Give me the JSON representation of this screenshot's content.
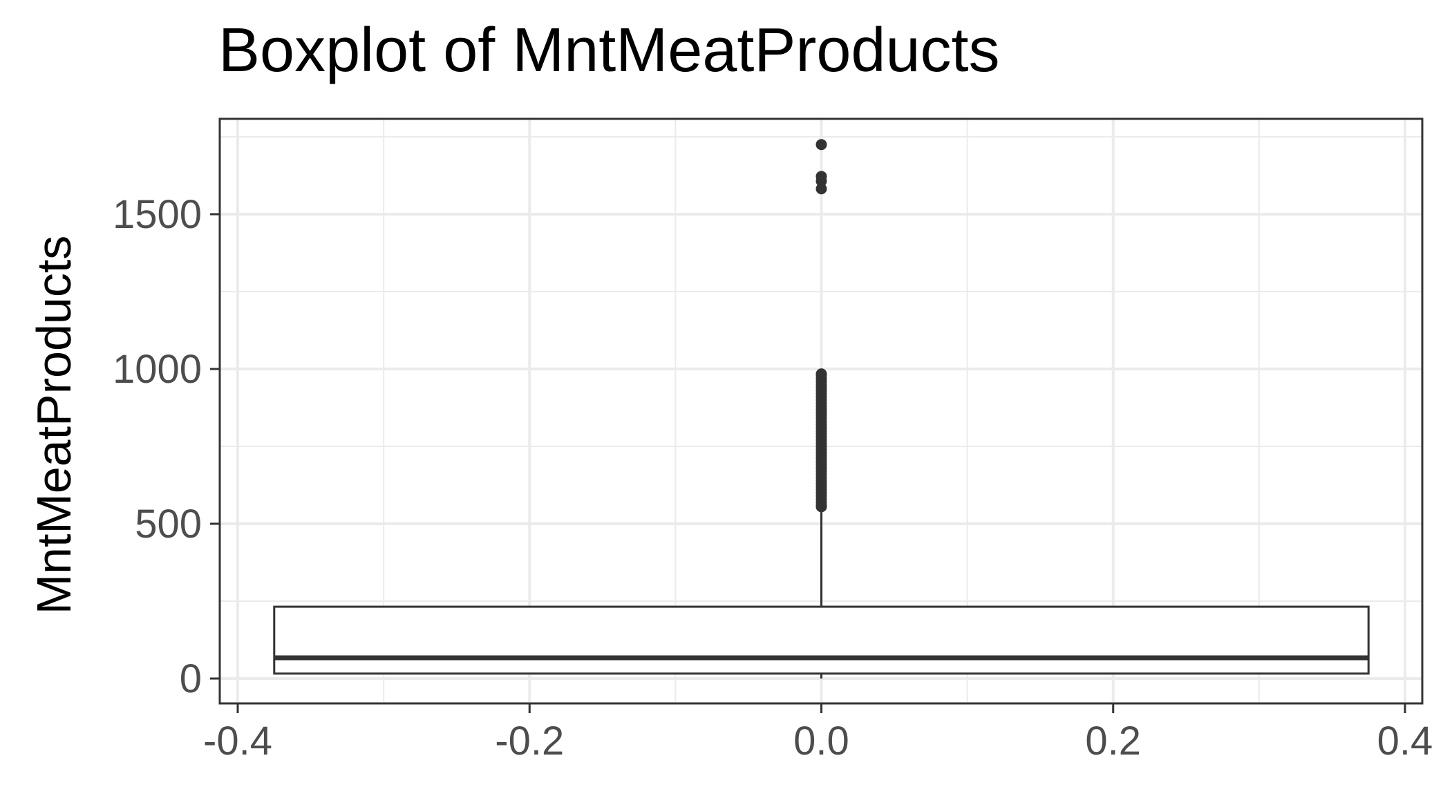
{
  "chart_data": {
    "type": "boxplot",
    "title": "Boxplot of MntMeatProducts",
    "xlabel": "",
    "ylabel": "MntMeatProducts",
    "xlim": [
      -0.4,
      0.4
    ],
    "ylim": [
      0,
      1725
    ],
    "x_ticks": [
      -0.4,
      -0.2,
      0.0,
      0.2,
      0.4
    ],
    "x_tick_labels": [
      "-0.4",
      "-0.2",
      "0.0",
      "0.2",
      "0.4"
    ],
    "y_ticks": [
      0,
      500,
      1000,
      1500
    ],
    "y_tick_labels": [
      "0",
      "500",
      "1000",
      "1500"
    ],
    "grid": true,
    "box": {
      "x": 0.0,
      "width": 0.75,
      "min": 0,
      "q1": 16,
      "median": 67,
      "q3": 232,
      "whisker_high": 550
    },
    "outliers": [
      555,
      560,
      570,
      580,
      590,
      600,
      610,
      620,
      630,
      640,
      650,
      660,
      670,
      680,
      690,
      700,
      710,
      720,
      730,
      740,
      750,
      760,
      770,
      780,
      790,
      800,
      810,
      820,
      830,
      840,
      850,
      860,
      870,
      880,
      890,
      900,
      910,
      920,
      930,
      940,
      950,
      960,
      970,
      981,
      984,
      1582,
      1607,
      1622,
      1725
    ],
    "colors": {
      "panel_border": "#333333",
      "grid": "#ebebeb",
      "box_fill": "#ffffff",
      "box_line": "#333333",
      "outlier": "#333333"
    }
  }
}
